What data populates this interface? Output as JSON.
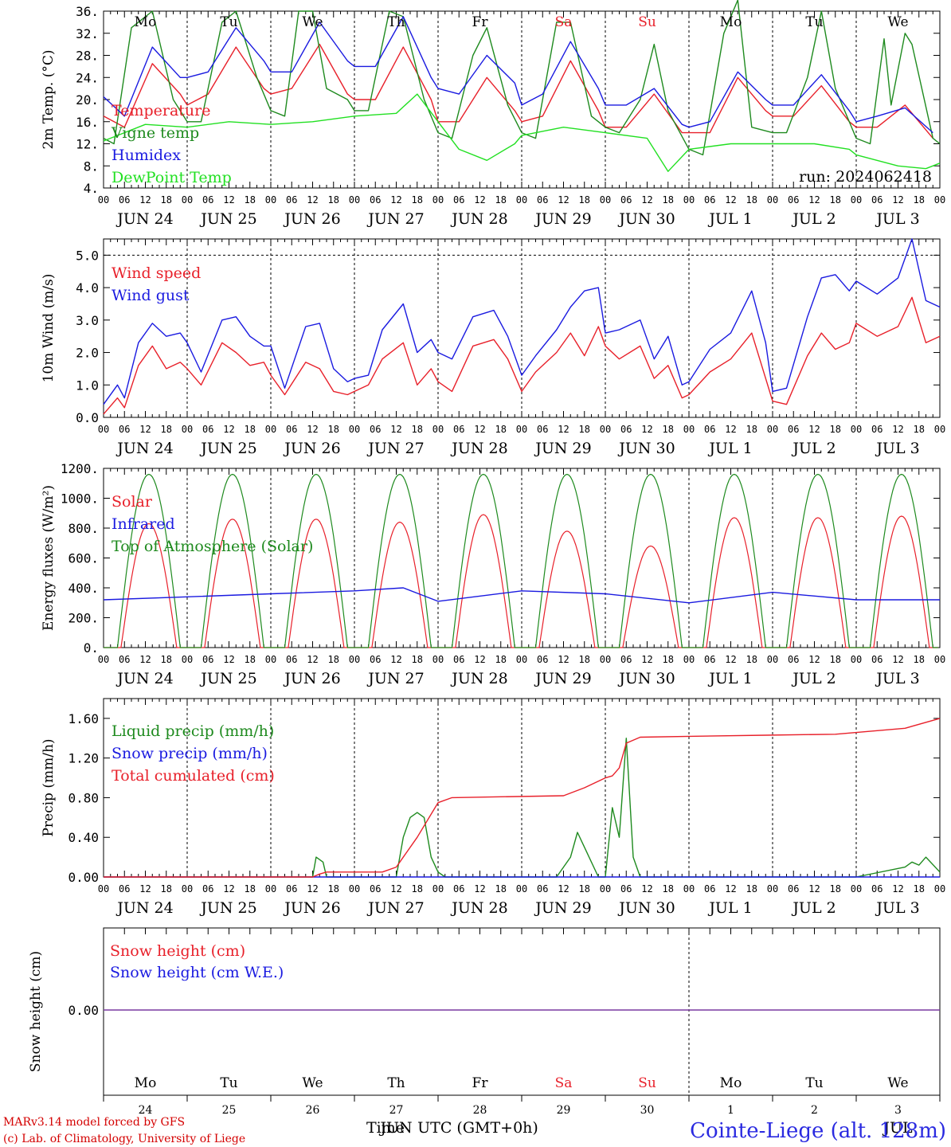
{
  "run_label": "run: 2024062418",
  "hour_ticks": [
    "00",
    "06",
    "12",
    "18"
  ],
  "date_labels": [
    "JUN 24",
    "JUN 25",
    "JUN 26",
    "JUN 27",
    "JUN 28",
    "JUN 29",
    "JUN 30",
    "JUL  1",
    "JUL  2",
    "JUL  3"
  ],
  "day_names": [
    "Mo",
    "Tu",
    "We",
    "Th",
    "Fr",
    "Sa",
    "Su",
    "Mo",
    "Tu",
    "We"
  ],
  "weekend_color": "#e8202a",
  "bottom_day_numbers": [
    "24",
    "25",
    "26",
    "27",
    "28",
    "29",
    "30",
    "1",
    "2",
    "3"
  ],
  "bottom_month_label": "JUN",
  "bottom_month_label_2": "JUL",
  "x_axis_title": "Time",
  "x_axis_subtitle": "UTC (GMT+0h)",
  "credit_line1": "MARv3.14 model forced by GFS",
  "credit_line2": "(c) Lab. of Climatology, University of Liege",
  "station": "Cointe-Liege (alt. 128m)",
  "chart_data": [
    {
      "type": "line",
      "ylabel": "2m Temp. (°C)",
      "ylim": [
        4,
        36
      ],
      "yticks": [
        "4.",
        "8.",
        "12.",
        "16.",
        "20.",
        "24.",
        "28.",
        "32.",
        "36."
      ],
      "grid": "vertical dashed at day boundaries",
      "series": [
        {
          "name": "Temperature",
          "color": "#e8202a",
          "x_hours": [
            0,
            6,
            14,
            22,
            24,
            30,
            38,
            46,
            48,
            54,
            62,
            70,
            72,
            78,
            86,
            94,
            96,
            102,
            110,
            118,
            120,
            126,
            134,
            142,
            144,
            150,
            158,
            166,
            168,
            174,
            182,
            190,
            192,
            198,
            206,
            214,
            216,
            222,
            230,
            238
          ],
          "values": [
            17,
            15,
            26.5,
            21,
            19,
            21,
            29.5,
            22,
            21,
            22,
            30,
            21,
            20,
            20,
            29.5,
            20,
            16,
            16,
            24,
            18,
            16,
            17,
            27,
            18,
            15,
            15,
            21,
            14,
            14,
            14,
            24,
            18,
            17,
            17,
            22.5,
            16,
            15,
            15,
            19,
            13
          ]
        },
        {
          "name": "Vigne temp",
          "color": "#1e8a1e",
          "x_hours": [
            0,
            3,
            8,
            14,
            20,
            24,
            28,
            34,
            38,
            44,
            48,
            52,
            56,
            60,
            64,
            70,
            72,
            76,
            82,
            86,
            92,
            96,
            100,
            106,
            110,
            116,
            120,
            124,
            130,
            134,
            140,
            144,
            148,
            154,
            158,
            162,
            168,
            172,
            178,
            182,
            186,
            192,
            196,
            202,
            206,
            210,
            216,
            220,
            224,
            226,
            230,
            232,
            238,
            240
          ],
          "values": [
            13,
            12,
            33,
            36,
            20,
            16,
            16,
            34,
            36,
            24,
            18,
            17,
            36,
            36,
            22,
            20,
            18,
            18,
            36,
            35,
            20,
            14,
            13,
            28,
            33,
            19,
            14,
            13,
            34,
            34,
            17,
            15,
            14,
            20,
            30,
            18,
            11,
            10,
            32,
            38,
            15,
            14,
            14,
            24,
            36,
            22,
            13,
            12,
            31,
            19,
            32,
            30,
            13,
            12
          ]
        },
        {
          "name": "Humidex",
          "color": "#1a1ae0",
          "x_hours": [
            0,
            6,
            14,
            22,
            24,
            30,
            38,
            46,
            48,
            54,
            62,
            70,
            72,
            78,
            86,
            94,
            96,
            102,
            110,
            118,
            120,
            126,
            134,
            142,
            144,
            150,
            158,
            166,
            168,
            174,
            182,
            190,
            192,
            198,
            206,
            214,
            216,
            222,
            230,
            238
          ],
          "values": [
            20.5,
            17,
            29.5,
            24,
            24,
            25,
            33,
            27,
            25,
            25,
            34,
            27,
            26,
            26,
            35,
            24,
            22,
            21,
            28,
            23,
            19,
            21,
            30.5,
            22,
            19,
            19,
            22,
            15.5,
            15,
            16,
            25,
            20,
            19,
            19,
            24.5,
            18,
            16,
            17,
            18.5,
            14
          ]
        },
        {
          "name": "DewPoint Temp",
          "color": "#22e022",
          "x_hours": [
            0,
            12,
            24,
            36,
            48,
            60,
            72,
            84,
            90,
            96,
            102,
            110,
            118,
            120,
            132,
            144,
            156,
            162,
            168,
            180,
            192,
            204,
            214,
            216,
            228,
            236,
            240
          ],
          "values": [
            12.5,
            15.5,
            15,
            16,
            15.5,
            16,
            17,
            17.5,
            21,
            16,
            11,
            9,
            12,
            13.5,
            15,
            14,
            13,
            7,
            11,
            12,
            12,
            12,
            11,
            10,
            8,
            7.5,
            8.5
          ]
        }
      ]
    },
    {
      "type": "line",
      "ylabel": "10m Wind (m/s)",
      "ylim": [
        0,
        5.5
      ],
      "yticks": [
        "0.0",
        "1.0",
        "2.0",
        "3.0",
        "4.0",
        "5.0"
      ],
      "reference_line": 5.0,
      "series": [
        {
          "name": "Wind speed",
          "color": "#e8202a",
          "x_hours": [
            0,
            4,
            6,
            10,
            14,
            18,
            22,
            24,
            28,
            34,
            38,
            42,
            46,
            48,
            52,
            58,
            62,
            66,
            70,
            72,
            76,
            80,
            86,
            90,
            94,
            96,
            100,
            106,
            112,
            116,
            120,
            124,
            130,
            134,
            138,
            142,
            144,
            148,
            154,
            158,
            162,
            166,
            168,
            174,
            180,
            186,
            190,
            192,
            196,
            202,
            206,
            210,
            214,
            216,
            222,
            228,
            232,
            236,
            240
          ],
          "values": [
            0.1,
            0.6,
            0.3,
            1.6,
            2.2,
            1.5,
            1.7,
            1.5,
            1.0,
            2.3,
            2.0,
            1.6,
            1.7,
            1.3,
            0.7,
            1.7,
            1.5,
            0.8,
            0.7,
            0.8,
            1.0,
            1.8,
            2.3,
            1.0,
            1.5,
            1.1,
            0.8,
            2.2,
            2.4,
            1.8,
            0.8,
            1.4,
            2.0,
            2.6,
            1.9,
            2.8,
            2.2,
            1.8,
            2.2,
            1.2,
            1.6,
            0.6,
            0.7,
            1.4,
            1.8,
            2.6,
            1.2,
            0.5,
            0.4,
            1.9,
            2.6,
            2.1,
            2.3,
            2.9,
            2.5,
            2.8,
            3.7,
            2.3,
            2.5
          ]
        },
        {
          "name": "Wind gust",
          "color": "#1a1ae0",
          "x_hours": [
            0,
            4,
            6,
            10,
            14,
            18,
            22,
            24,
            28,
            34,
            38,
            42,
            46,
            48,
            52,
            58,
            62,
            66,
            70,
            72,
            76,
            80,
            86,
            90,
            94,
            96,
            100,
            106,
            112,
            116,
            120,
            124,
            130,
            134,
            138,
            142,
            144,
            148,
            154,
            158,
            162,
            166,
            168,
            174,
            180,
            186,
            190,
            192,
            196,
            202,
            206,
            210,
            214,
            216,
            222,
            228,
            232,
            236,
            240
          ],
          "values": [
            0.4,
            1.0,
            0.6,
            2.3,
            2.9,
            2.5,
            2.6,
            2.3,
            1.4,
            3.0,
            3.1,
            2.5,
            2.2,
            2.2,
            0.9,
            2.8,
            2.9,
            1.5,
            1.1,
            1.2,
            1.3,
            2.7,
            3.5,
            2.0,
            2.4,
            2.0,
            1.8,
            3.1,
            3.3,
            2.5,
            1.3,
            1.9,
            2.7,
            3.4,
            3.9,
            4.0,
            2.6,
            2.7,
            3.0,
            1.8,
            2.5,
            1.0,
            1.1,
            2.1,
            2.6,
            3.9,
            2.3,
            0.8,
            0.9,
            3.1,
            4.3,
            4.4,
            3.9,
            4.2,
            3.8,
            4.3,
            5.5,
            3.6,
            3.4
          ]
        }
      ]
    },
    {
      "type": "line",
      "ylabel": "Energy fluxes (W/m²)",
      "ylim": [
        0,
        1200
      ],
      "yticks": [
        "0.",
        "200.",
        "400.",
        "600.",
        "800.",
        "1000.",
        "1200."
      ],
      "series": [
        {
          "name": "Solar",
          "color": "#e8202a",
          "daily_peak": [
            830,
            860,
            860,
            840,
            890,
            780,
            680,
            870,
            870,
            880
          ]
        },
        {
          "name": "Infrared",
          "color": "#1a1ae0",
          "x_hours": [
            0,
            24,
            48,
            72,
            86,
            96,
            120,
            144,
            168,
            192,
            216,
            240
          ],
          "values": [
            320,
            340,
            360,
            380,
            400,
            310,
            380,
            360,
            300,
            370,
            320,
            320
          ]
        },
        {
          "name": "Top of Atmosphere (Solar)",
          "color": "#1e8a1e",
          "daily_peak": [
            1160,
            1160,
            1160,
            1160,
            1160,
            1160,
            1160,
            1160,
            1160,
            1160
          ]
        }
      ]
    },
    {
      "type": "line",
      "ylabel": "Precip (mm/h)",
      "ylim": [
        0,
        1.8
      ],
      "yticks": [
        "0.00",
        "0.40",
        "0.80",
        "1.20",
        "1.60"
      ],
      "series": [
        {
          "name": "Liquid precip (mm/h)",
          "color": "#1e8a1e",
          "x_hours": [
            0,
            60,
            61,
            63,
            64,
            84,
            86,
            88,
            90,
            92,
            94,
            96,
            98,
            100,
            130,
            134,
            136,
            138,
            142,
            144,
            146,
            148,
            150,
            152,
            154,
            216,
            230,
            232,
            234,
            236,
            240
          ],
          "values": [
            0,
            0,
            0.2,
            0.15,
            0,
            0,
            0.4,
            0.6,
            0.65,
            0.6,
            0.2,
            0.05,
            0,
            0,
            0,
            0.2,
            0.45,
            0.3,
            0,
            0,
            0.7,
            0.4,
            1.4,
            0.2,
            0,
            0,
            0.1,
            0.15,
            0.12,
            0.2,
            0.05
          ]
        },
        {
          "name": "Snow precip (mm/h)",
          "color": "#1a1ae0",
          "x_hours": [
            0,
            240
          ],
          "values": [
            0,
            0
          ]
        },
        {
          "name": "Total cumulated (cm)",
          "color": "#e8202a",
          "x_hours": [
            0,
            60,
            62,
            64,
            80,
            84,
            90,
            96,
            100,
            132,
            138,
            144,
            146,
            148,
            150,
            154,
            170,
            190,
            210,
            220,
            230,
            240
          ],
          "values": [
            0,
            0,
            0.03,
            0.05,
            0.05,
            0.1,
            0.4,
            0.75,
            0.8,
            0.82,
            0.9,
            1.0,
            1.02,
            1.1,
            1.35,
            1.41,
            1.42,
            1.43,
            1.44,
            1.47,
            1.5,
            1.6
          ]
        }
      ]
    },
    {
      "type": "line",
      "ylabel": "Snow height (cm)",
      "yticks": [
        "0.00"
      ],
      "series": [
        {
          "name": "Snow height (cm)",
          "color": "#e8202a",
          "x_hours": [
            0,
            240
          ],
          "values": [
            0,
            0
          ]
        },
        {
          "name": "Snow height (cm W.E.)",
          "color": "#1a1ae0",
          "x_hours": [
            0,
            240
          ],
          "values": [
            0,
            0
          ]
        }
      ]
    }
  ]
}
